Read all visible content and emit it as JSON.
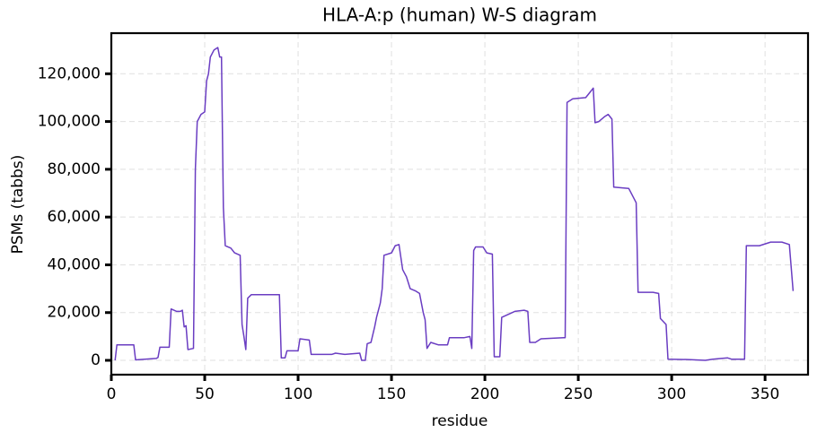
{
  "chart_data": {
    "type": "line",
    "title": "HLA-A:p (human) W-S diagram",
    "x_label": "residue",
    "y_label": "PSMs (tabbs)",
    "xlim": [
      0,
      373
    ],
    "ylim": [
      -6000,
      137000
    ],
    "xticks": [
      0,
      50,
      100,
      150,
      200,
      250,
      300,
      350
    ],
    "yticks": [
      0,
      {
        "value": 20000,
        "label": "20,000"
      },
      {
        "value": 40000,
        "label": "40,000"
      },
      {
        "value": 60000,
        "label": "60,000"
      },
      {
        "value": 80000,
        "label": "80,000"
      },
      {
        "value": 100000,
        "label": "100,000"
      },
      {
        "value": 120000,
        "label": "120,000"
      }
    ],
    "grid": true,
    "x": [
      2,
      3,
      12,
      13,
      24,
      25,
      26,
      31,
      32,
      35,
      37,
      38,
      39,
      40,
      41,
      44,
      45,
      46,
      48,
      50,
      51,
      52,
      53,
      55,
      57,
      58,
      59,
      60,
      61,
      64,
      66,
      69,
      70,
      71,
      72,
      73,
      75,
      90,
      91,
      93,
      94,
      100,
      101,
      106,
      107,
      118,
      120,
      125,
      133,
      134,
      136,
      137,
      139,
      141,
      142,
      144,
      145,
      146,
      150,
      152,
      154,
      156,
      158,
      160,
      163,
      165,
      167,
      168,
      169,
      171,
      175,
      180,
      181,
      189,
      192,
      193,
      194,
      195,
      199,
      201,
      204,
      205,
      208,
      209,
      216,
      221,
      223,
      224,
      227,
      230,
      242,
      243,
      244,
      247,
      254,
      256,
      258,
      259,
      261,
      264,
      266,
      268,
      269,
      277,
      281,
      282,
      290,
      293,
      294,
      297,
      298,
      310,
      318,
      322,
      330,
      332,
      339,
      340,
      347,
      353,
      359,
      363,
      365
    ],
    "series": [
      {
        "name": "PSMs",
        "color": "#6a3dc2",
        "values": [
          0,
          6500,
          6500,
          200,
          800,
          1200,
          5500,
          5500,
          21500,
          20500,
          20500,
          21000,
          14000,
          14500,
          4500,
          5000,
          80000,
          100000,
          103000,
          104000,
          117000,
          120000,
          127000,
          130000,
          131000,
          127000,
          127000,
          64000,
          48000,
          47000,
          45000,
          44000,
          15000,
          10000,
          4500,
          26000,
          27500,
          27500,
          1000,
          1000,
          4000,
          4000,
          9000,
          8500,
          2500,
          2500,
          3000,
          2500,
          3000,
          0,
          0,
          7000,
          7500,
          14000,
          18000,
          24000,
          30000,
          44000,
          45000,
          48000,
          48500,
          38000,
          35000,
          30000,
          29000,
          28000,
          20000,
          17000,
          5000,
          7500,
          6500,
          6500,
          9500,
          9500,
          10000,
          5000,
          46000,
          47500,
          47500,
          45000,
          44500,
          1500,
          1500,
          18000,
          20500,
          21000,
          20500,
          7500,
          7500,
          9000,
          9500,
          9500,
          108000,
          109500,
          110000,
          112000,
          114000,
          99500,
          100000,
          102000,
          103000,
          101000,
          72500,
          72000,
          66000,
          28500,
          28500,
          28000,
          17500,
          15000,
          500,
          300,
          0,
          500,
          1000,
          500,
          500,
          48000,
          48000,
          49500,
          49500,
          48500,
          29000
        ]
      }
    ]
  }
}
